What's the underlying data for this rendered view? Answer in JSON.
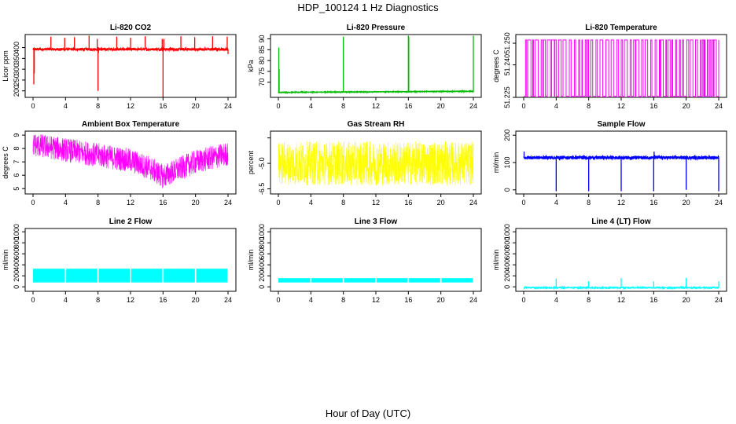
{
  "figure": {
    "title": "HDP_100124  1 Hz Diagnostics",
    "xlabel": "Hour of Day (UTC)"
  },
  "chart_data": [
    {
      "type": "line",
      "title": "Li-820 CO2",
      "ylabel": "Licor ppm",
      "color": "#ff0000",
      "xlim": [
        0,
        24
      ],
      "ylim": [
        170,
        460
      ],
      "xticks": [
        0,
        4,
        8,
        12,
        16,
        20,
        24
      ],
      "yticks": [
        200,
        250,
        300,
        350,
        400
      ],
      "baseline": 392,
      "noise": 6,
      "spikes": [
        [
          0.1,
          230
        ],
        [
          0.15,
          280
        ],
        [
          2.2,
          450
        ],
        [
          3.9,
          445
        ],
        [
          5.1,
          448
        ],
        [
          6.9,
          455
        ],
        [
          7.9,
          440
        ],
        [
          8.0,
          200
        ],
        [
          8.05,
          375
        ],
        [
          10.3,
          450
        ],
        [
          12.0,
          445
        ],
        [
          13.8,
          452
        ],
        [
          15.9,
          440
        ],
        [
          16.0,
          170
        ],
        [
          16.1,
          440
        ],
        [
          18.2,
          452
        ],
        [
          19.9,
          448
        ],
        [
          22.1,
          452
        ],
        [
          23.9,
          450
        ],
        [
          24.0,
          370
        ]
      ]
    },
    {
      "type": "line",
      "title": "Li-820 Pressure",
      "ylabel": "kPa",
      "color": "#00bb00",
      "xlim": [
        0,
        24
      ],
      "ylim": [
        63,
        92
      ],
      "xticks": [
        0,
        4,
        8,
        12,
        16,
        20,
        24
      ],
      "yticks": [
        70,
        75,
        80,
        85,
        90
      ],
      "baseline_start": 65.3,
      "baseline_end": 65.8,
      "noise": 0.15,
      "spikes": [
        [
          0.05,
          86
        ],
        [
          0.1,
          76
        ],
        [
          8.0,
          91
        ],
        [
          16.0,
          91.5
        ],
        [
          16.05,
          91
        ],
        [
          24.0,
          91.5
        ]
      ]
    },
    {
      "type": "step",
      "title": "Li-820 Temperature",
      "ylabel": "degrees C",
      "color": "#ff00ff",
      "xlim": [
        0,
        24
      ],
      "ylim": [
        51.225,
        51.254
      ],
      "xticks": [
        0,
        4,
        8,
        12,
        16,
        20,
        24
      ],
      "yticks": [
        51.225,
        51.24,
        51.25
      ],
      "tick_labels": [
        "51.225",
        "51.240",
        "51.250"
      ],
      "levels": [
        51.2255,
        51.2515
      ]
    },
    {
      "type": "line",
      "title": "Ambient Box Temperature",
      "ylabel": "degrees C",
      "color": "#ff00ff",
      "xlim": [
        0,
        24
      ],
      "ylim": [
        4.6,
        9.3
      ],
      "xticks": [
        0,
        4,
        8,
        12,
        16,
        20,
        24
      ],
      "yticks": [
        5,
        6,
        7,
        8,
        9
      ],
      "trend": [
        [
          0,
          8.3
        ],
        [
          4,
          7.9
        ],
        [
          8,
          7.5
        ],
        [
          12,
          7.1
        ],
        [
          14.5,
          6.5
        ],
        [
          16,
          5.9
        ],
        [
          17,
          6.2
        ],
        [
          20,
          7.0
        ],
        [
          24,
          7.6
        ]
      ],
      "noise": 0.9
    },
    {
      "type": "line",
      "title": "Gas Stream RH",
      "ylabel": "percent",
      "color": "#ffff00",
      "xlim": [
        0,
        24
      ],
      "ylim": [
        -6.8,
        -3.1
      ],
      "xticks": [
        0,
        4,
        8,
        12,
        16,
        20,
        24
      ],
      "yticks": [
        -6.5,
        -5.0,
        -3.5
      ],
      "tick_labels": [
        "-6.5",
        "-5.0",
        ""
      ],
      "baseline": -5.0,
      "noise": 1.3
    },
    {
      "type": "line",
      "title": "Sample Flow",
      "ylabel": "ml/min",
      "color": "#0000ff",
      "xlim": [
        0,
        24
      ],
      "ylim": [
        -15,
        215
      ],
      "xticks": [
        0,
        4,
        8,
        12,
        16,
        20,
        24
      ],
      "yticks": [
        0,
        100,
        200
      ],
      "baseline": 118,
      "noise": 6,
      "spikes": [
        [
          0.05,
          140
        ],
        [
          4.0,
          -5
        ],
        [
          8.0,
          -5
        ],
        [
          12.0,
          -5
        ],
        [
          16.0,
          -5
        ],
        [
          16.05,
          140
        ],
        [
          20.0,
          0
        ],
        [
          24.0,
          -5
        ]
      ]
    },
    {
      "type": "line",
      "title": "Line 2 Flow",
      "ylabel": "ml/min",
      "color": "#00ffff",
      "xlim": [
        0,
        24
      ],
      "ylim": [
        -80,
        1060
      ],
      "xticks": [
        0,
        4,
        8,
        12,
        16,
        20,
        24
      ],
      "yticks": [
        0,
        200,
        400,
        600,
        800,
        1000
      ],
      "band": [
        80,
        330
      ],
      "gaps": [
        4,
        8,
        12,
        16,
        20
      ]
    },
    {
      "type": "line",
      "title": "Line 3 Flow",
      "ylabel": "ml/min",
      "color": "#00ffff",
      "xlim": [
        0,
        24
      ],
      "ylim": [
        -80,
        1060
      ],
      "xticks": [
        0,
        4,
        8,
        12,
        16,
        20,
        24
      ],
      "yticks": [
        0,
        200,
        400,
        600,
        800,
        1000
      ],
      "band": [
        80,
        160
      ],
      "gaps": [
        4,
        8,
        12,
        16,
        20
      ]
    },
    {
      "type": "line",
      "title": "Line 4 (LT) Flow",
      "ylabel": "ml/min",
      "color": "#00ffff",
      "xlim": [
        0,
        24
      ],
      "ylim": [
        -80,
        1060
      ],
      "xticks": [
        0,
        4,
        8,
        12,
        16,
        20,
        24
      ],
      "yticks": [
        0,
        200,
        400,
        600,
        800,
        1000
      ],
      "baseline": -15,
      "noise": 8,
      "spikes": [
        [
          4.0,
          150
        ],
        [
          8.0,
          100
        ],
        [
          12.0,
          160
        ],
        [
          16.0,
          100
        ],
        [
          20.0,
          165
        ],
        [
          24.0,
          100
        ]
      ]
    }
  ]
}
